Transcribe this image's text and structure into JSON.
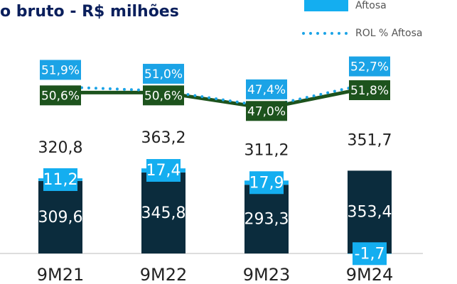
{
  "chart_data": {
    "type": "bar",
    "title": "o bruto - R$ milhões",
    "categories": [
      "9M21",
      "9M22",
      "9M23",
      "9M24"
    ],
    "ylim": [
      0,
      1000
    ],
    "y2lim": [
      30,
      60
    ],
    "stacked": true,
    "series": [
      {
        "color": "#0b2c3d",
        "values": [
          309.6,
          345.8,
          293.3,
          353.4
        ],
        "value_labels": [
          "309,6",
          "345,8",
          "293,3",
          "353,4"
        ]
      },
      {
        "name": "Aftosa",
        "color": "#14aef0",
        "values": [
          11.2,
          17.4,
          17.9,
          -1.7
        ],
        "value_labels": [
          "11,2",
          "17,4",
          "17,9",
          "-1,7"
        ]
      },
      {
        "type": "line",
        "axis": "y2",
        "color": "#1d531d",
        "values": [
          50.6,
          50.6,
          47.0,
          51.8
        ],
        "value_labels": [
          "50,6%",
          "50,6%",
          "47,0%",
          "51,8%"
        ]
      },
      {
        "type": "line",
        "axis": "y2",
        "dotted": true,
        "name": "ROL % Aftosa",
        "color": "#1ba3e6",
        "values": [
          51.9,
          51.0,
          47.4,
          52.7
        ],
        "value_labels": [
          "51,9%",
          "51,0%",
          "47,4%",
          "52,7%"
        ]
      }
    ],
    "totals": {
      "values": [
        320.8,
        363.2,
        311.2,
        351.7
      ],
      "value_labels": [
        "320,8",
        "363,2",
        "311,2",
        "351,7"
      ]
    }
  }
}
